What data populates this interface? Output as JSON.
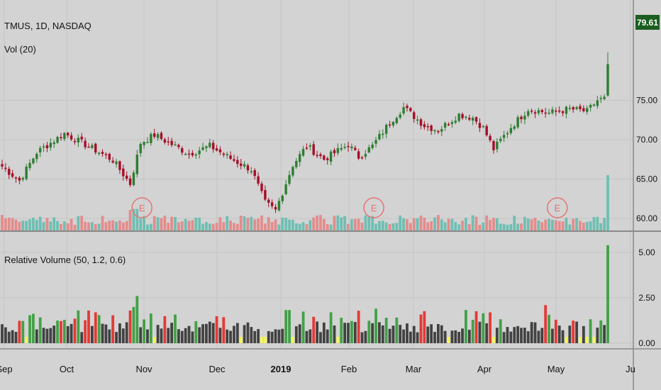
{
  "header": {
    "symbol": "TMUS, 1D, NASDAQ",
    "volume_study": "Vol (20)",
    "rvol_study": "Relative Volume (50, 1.2, 0.6)"
  },
  "last_price": "79.61",
  "earnings_marker": "E",
  "colors": {
    "background": "#d3d3d3",
    "grid": "#c4c4c4",
    "up": "#2e7d32",
    "down": "#a50e28",
    "vol_up": "#6fbfb3",
    "vol_down": "#e48c8c",
    "rvol_high_up": "#43a047",
    "rvol_high_down": "#e53935",
    "rvol_low": "#f5f55a",
    "rvol_normal": "#424242",
    "price_tag": "#1b5e20"
  },
  "chart_data": [
    {
      "type": "candlestick",
      "title": "TMUS, 1D, NASDAQ",
      "ylim": [
        59,
        81
      ],
      "y_ticks": [
        "60.00",
        "65.00",
        "70.00",
        "75.00"
      ],
      "x_ticks": [
        "Sep",
        "Oct",
        "Nov",
        "Dec",
        "2019",
        "Feb",
        "Mar",
        "Apr",
        "May",
        "Ju"
      ],
      "close_keypoints": [
        {
          "i": 0,
          "close": 66.6
        },
        {
          "i": 5,
          "close": 64.8
        },
        {
          "i": 10,
          "close": 68.4
        },
        {
          "i": 18,
          "close": 70.8
        },
        {
          "i": 26,
          "close": 68.9
        },
        {
          "i": 32,
          "close": 67.4
        },
        {
          "i": 37,
          "close": 64.4
        },
        {
          "i": 40,
          "close": 69.6
        },
        {
          "i": 44,
          "close": 70.6
        },
        {
          "i": 54,
          "close": 68.2
        },
        {
          "i": 60,
          "close": 69.2
        },
        {
          "i": 66,
          "close": 67.6
        },
        {
          "i": 72,
          "close": 66.2
        },
        {
          "i": 76,
          "close": 62.0
        },
        {
          "i": 79,
          "close": 61.0
        },
        {
          "i": 84,
          "close": 66.8
        },
        {
          "i": 88,
          "close": 69.2
        },
        {
          "i": 93,
          "close": 67.5
        },
        {
          "i": 100,
          "close": 69.4
        },
        {
          "i": 103,
          "close": 67.8
        },
        {
          "i": 107,
          "close": 69.2
        },
        {
          "i": 112,
          "close": 72.2
        },
        {
          "i": 116,
          "close": 74.1
        },
        {
          "i": 122,
          "close": 71.8
        },
        {
          "i": 126,
          "close": 71.2
        },
        {
          "i": 132,
          "close": 73.2
        },
        {
          "i": 136,
          "close": 72.8
        },
        {
          "i": 139,
          "close": 71.5
        },
        {
          "i": 142,
          "close": 68.8
        },
        {
          "i": 147,
          "close": 71.6
        },
        {
          "i": 152,
          "close": 73.9
        },
        {
          "i": 158,
          "close": 73.4
        },
        {
          "i": 164,
          "close": 73.9
        },
        {
          "i": 169,
          "close": 73.6
        },
        {
          "i": 172,
          "close": 75.0
        },
        {
          "i": 174,
          "close": 75.2
        },
        {
          "i": 175,
          "close": 79.6
        }
      ]
    },
    {
      "type": "bar",
      "title": "Vol (20)",
      "note": "volume histogram, relative heights",
      "count": 176
    },
    {
      "type": "bar",
      "title": "Relative Volume (50, 1.2, 0.6)",
      "ylim": [
        0,
        5.5
      ],
      "y_ticks": [
        "0.00",
        "2.50",
        "5.00"
      ],
      "peaks": [
        {
          "i": 37,
          "value": 1.8
        },
        {
          "i": 38,
          "value": 2.0
        },
        {
          "i": 39,
          "value": 2.6
        },
        {
          "i": 25,
          "value": 1.8
        },
        {
          "i": 27,
          "value": 1.7
        },
        {
          "i": 108,
          "value": 1.9
        },
        {
          "i": 141,
          "value": 1.7
        },
        {
          "i": 157,
          "value": 2.1
        },
        {
          "i": 175,
          "value": 5.4
        }
      ]
    }
  ]
}
